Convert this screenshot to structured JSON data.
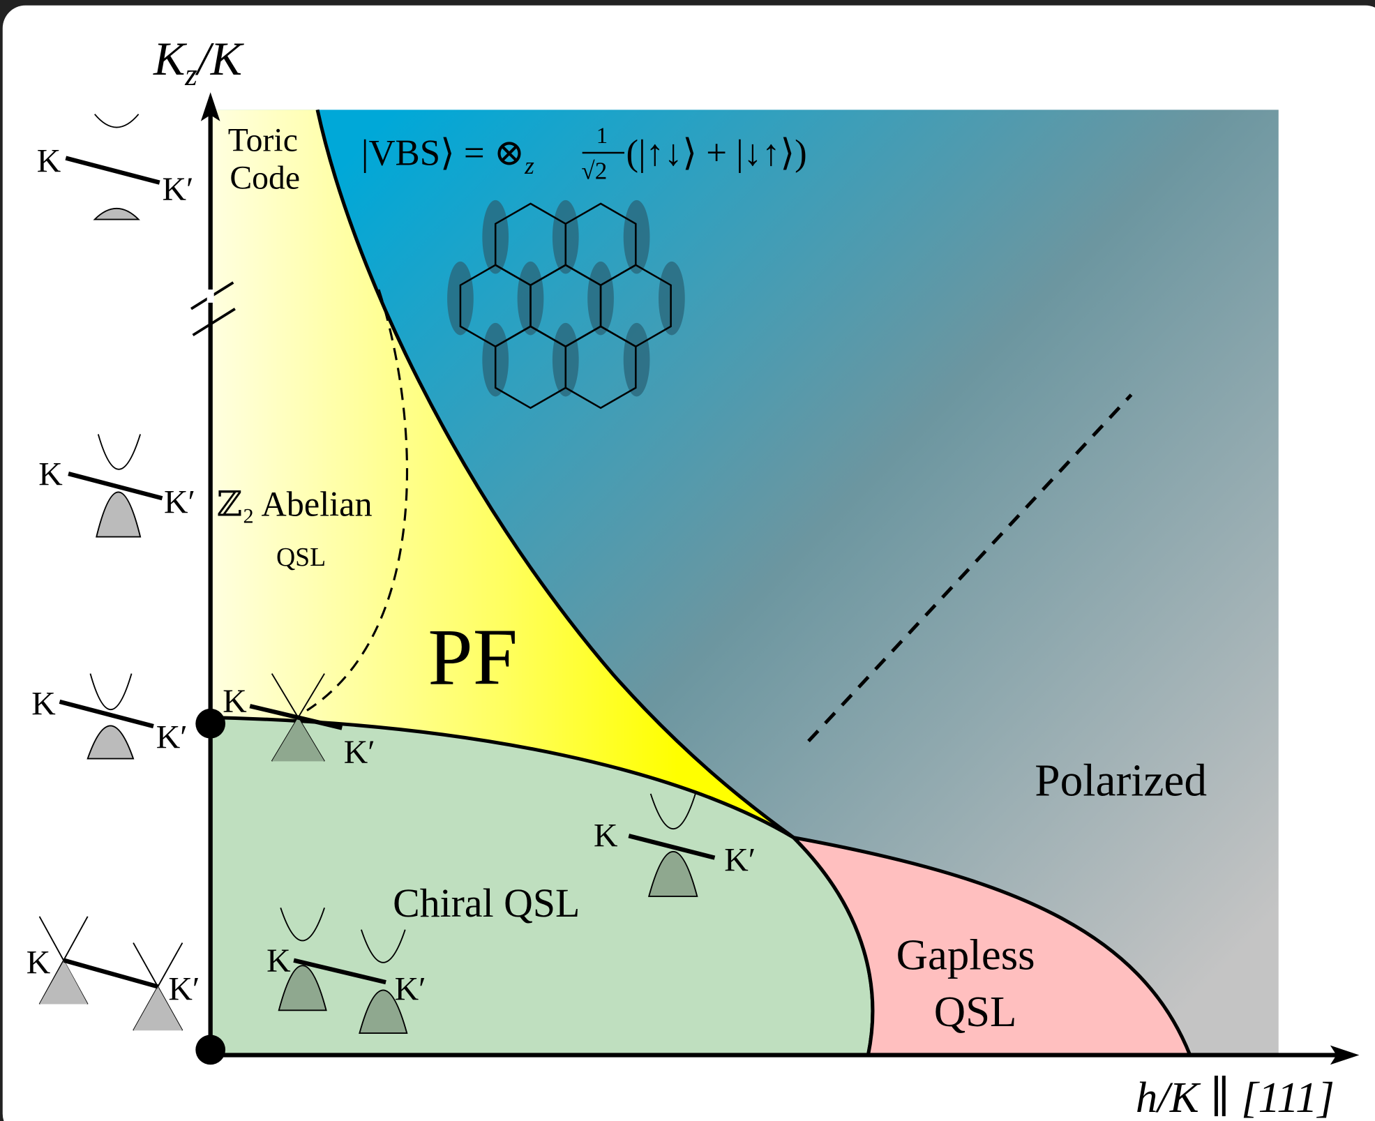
{
  "axes": {
    "y_label": {
      "main": "K",
      "sub": "z",
      "rest": "/K"
    },
    "x_label": "h/K ∥ [111]"
  },
  "phases": {
    "toric_code": [
      "Toric",
      "Code"
    ],
    "vbs": {
      "lhs": "|VBS⟩ = ⊗",
      "sub": "z",
      "num": "1",
      "den": "√2",
      "rhs": "(|↑↓⟩ + |↓↑⟩)"
    },
    "abelian": "ℤ₂ Abelian",
    "abelian_qsl": "QSL",
    "pf": "PF",
    "chiral": "Chiral QSL",
    "gapless": [
      "Gapless",
      "QSL"
    ],
    "polarized": "Polarized"
  },
  "band_insets": [
    {
      "k": "K",
      "k_prime": "K′"
    },
    {
      "k": "K",
      "k_prime": "K′"
    },
    {
      "k": "K",
      "k_prime": "K′"
    },
    {
      "k": "K",
      "k_prime": "K′"
    },
    {
      "k": "K",
      "k_prime": "K′"
    },
    {
      "k": "K",
      "k_prime": "K′"
    },
    {
      "k": "K",
      "k_prime": "K′"
    }
  ]
}
